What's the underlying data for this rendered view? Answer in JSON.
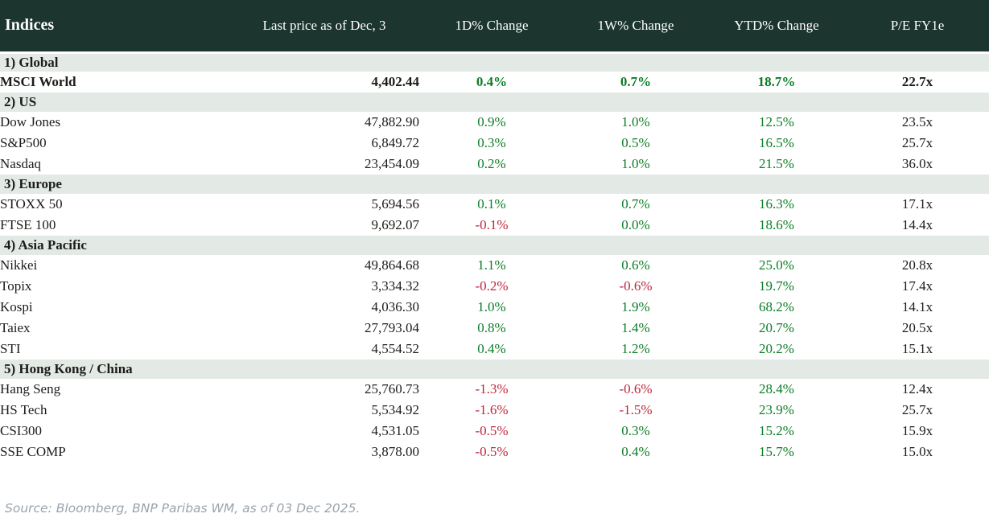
{
  "header": {
    "title": "Indices",
    "columns": {
      "last_price": "Last price as of Dec, 3",
      "change_1d": "1D% Change",
      "change_1w": "1W% Change",
      "change_ytd": "YTD% Change",
      "pe": "P/E FY1e"
    }
  },
  "sections": [
    {
      "label": "1) Global",
      "rows": [
        {
          "name": "MSCI World",
          "price": "4,402.44",
          "d1": "0.4%",
          "w1": "0.7%",
          "ytd": "18.7%",
          "pe": "22.7x",
          "bold": true
        }
      ]
    },
    {
      "label": "2) US",
      "rows": [
        {
          "name": "Dow Jones",
          "price": "47,882.90",
          "d1": "0.9%",
          "w1": "1.0%",
          "ytd": "12.5%",
          "pe": "23.5x",
          "bold": false
        },
        {
          "name": "S&P500",
          "price": "6,849.72",
          "d1": "0.3%",
          "w1": "0.5%",
          "ytd": "16.5%",
          "pe": "25.7x",
          "bold": false
        },
        {
          "name": "Nasdaq",
          "price": "23,454.09",
          "d1": "0.2%",
          "w1": "1.0%",
          "ytd": "21.5%",
          "pe": "36.0x",
          "bold": false
        }
      ]
    },
    {
      "label": "3) Europe",
      "rows": [
        {
          "name": "STOXX 50",
          "price": "5,694.56",
          "d1": "0.1%",
          "w1": "0.7%",
          "ytd": "16.3%",
          "pe": "17.1x",
          "bold": false
        },
        {
          "name": "FTSE 100",
          "price": "9,692.07",
          "d1": "-0.1%",
          "w1": "0.0%",
          "ytd": "18.6%",
          "pe": "14.4x",
          "bold": false
        }
      ]
    },
    {
      "label": "4) Asia Pacific",
      "rows": [
        {
          "name": "Nikkei",
          "price": "49,864.68",
          "d1": "1.1%",
          "w1": "0.6%",
          "ytd": "25.0%",
          "pe": "20.8x",
          "bold": false
        },
        {
          "name": "Topix",
          "price": "3,334.32",
          "d1": "-0.2%",
          "w1": "-0.6%",
          "ytd": "19.7%",
          "pe": "17.4x",
          "bold": false
        },
        {
          "name": "Kospi",
          "price": "4,036.30",
          "d1": "1.0%",
          "w1": "1.9%",
          "ytd": "68.2%",
          "pe": "14.1x",
          "bold": false
        },
        {
          "name": "Taiex",
          "price": "27,793.04",
          "d1": "0.8%",
          "w1": "1.4%",
          "ytd": "20.7%",
          "pe": "20.5x",
          "bold": false
        },
        {
          "name": "STI",
          "price": "4,554.52",
          "d1": "0.4%",
          "w1": "1.2%",
          "ytd": "20.2%",
          "pe": "15.1x",
          "bold": false
        }
      ]
    },
    {
      "label": "5) Hong Kong / China",
      "rows": [
        {
          "name": "Hang Seng",
          "price": "25,760.73",
          "d1": "-1.3%",
          "w1": "-0.6%",
          "ytd": "28.4%",
          "pe": "12.4x",
          "bold": false
        },
        {
          "name": "HS Tech",
          "price": "5,534.92",
          "d1": "-1.6%",
          "w1": "-1.5%",
          "ytd": "23.9%",
          "pe": "25.7x",
          "bold": false
        },
        {
          "name": "CSI300",
          "price": "4,531.05",
          "d1": "-0.5%",
          "w1": "0.3%",
          "ytd": "15.2%",
          "pe": "15.9x",
          "bold": false
        },
        {
          "name": "SSE COMP",
          "price": "3,878.00",
          "d1": "-0.5%",
          "w1": "0.4%",
          "ytd": "15.7%",
          "pe": "15.0x",
          "bold": false
        }
      ]
    }
  ],
  "footer": {
    "source": "Source: Bloomberg, BNP Paribas WM, as of 03 Dec 2025."
  },
  "colors": {
    "header_bg": "#1d352f",
    "header_text": "#ffffff",
    "section_bg": "#e3e9e4",
    "text": "#1c1c1a",
    "positive": "#0b7d26",
    "negative": "#c0253c",
    "source_text": "#9ba3ab"
  }
}
